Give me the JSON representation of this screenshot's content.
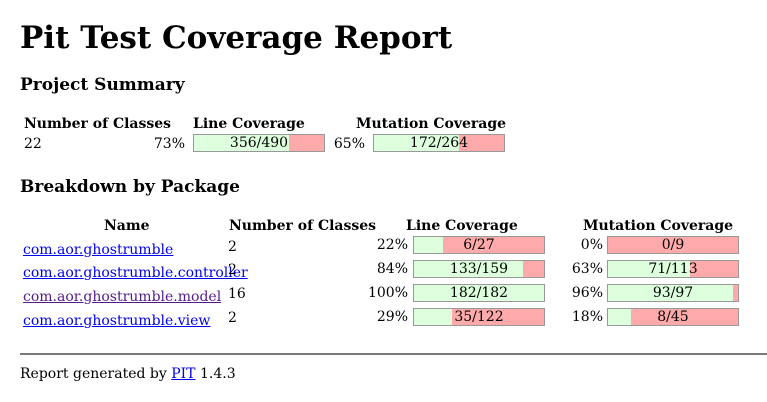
{
  "page": {
    "title": "Pit Test Coverage Report"
  },
  "project_summary": {
    "heading": "Project Summary",
    "col_classes": "Number of Classes",
    "col_line": "Line Coverage",
    "col_mutation": "Mutation Coverage",
    "classes": "22",
    "line_pct": "73%",
    "line_text": "356/490",
    "line_ratio": 0.73,
    "mut_pct": "65%",
    "mut_text": "172/264",
    "mut_ratio": 0.65
  },
  "breakdown": {
    "heading": "Breakdown by Package",
    "col_name": "Name",
    "col_classes": "Number of Classes",
    "col_line": "Line Coverage",
    "col_mutation": "Mutation Coverage",
    "rows": [
      {
        "name": "com.aor.ghostrumble",
        "classes": "2",
        "line_pct": "22%",
        "line_text": "6/27",
        "line_ratio": 0.22,
        "mut_pct": "0%",
        "mut_text": "0/9",
        "mut_ratio": 0.0,
        "visited": false
      },
      {
        "name": "com.aor.ghostrumble.controller",
        "classes": "2",
        "line_pct": "84%",
        "line_text": "133/159",
        "line_ratio": 0.84,
        "mut_pct": "63%",
        "mut_text": "71/113",
        "mut_ratio": 0.63,
        "visited": false
      },
      {
        "name": "com.aor.ghostrumble.model",
        "classes": "16",
        "line_pct": "100%",
        "line_text": "182/182",
        "line_ratio": 1.0,
        "mut_pct": "96%",
        "mut_text": "93/97",
        "mut_ratio": 0.96,
        "visited": true
      },
      {
        "name": "com.aor.ghostrumble.view",
        "classes": "2",
        "line_pct": "29%",
        "line_text": "35/122",
        "line_ratio": 0.29,
        "mut_pct": "18%",
        "mut_text": "8/45",
        "mut_ratio": 0.18,
        "visited": false
      }
    ]
  },
  "footer": {
    "prefix": "Report generated by",
    "link": "PIT",
    "version": "1.4.3"
  },
  "colors": {
    "covered": "#ddffdd",
    "uncovered": "#ffaaaa",
    "link": "#0000ee",
    "visited_link": "#551a8b"
  }
}
